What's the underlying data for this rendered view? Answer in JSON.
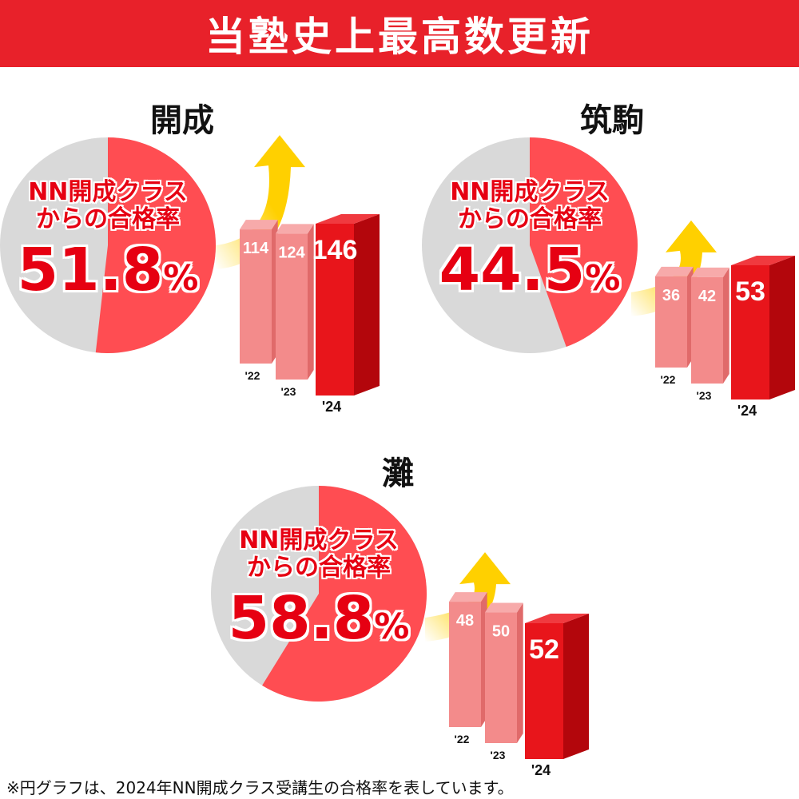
{
  "banner": {
    "title": "当塾史上最高数更新"
  },
  "charts": [
    {
      "school": "開成",
      "pie": {
        "label_line1": "NN開成クラス",
        "label_line2": "からの合格率",
        "value": 51.8,
        "display_value": "51.8",
        "unit": "%"
      },
      "bars": {
        "categories": [
          "'22",
          "'23",
          "'24"
        ],
        "values": [
          114,
          124,
          146
        ]
      }
    },
    {
      "school": "筑駒",
      "pie": {
        "label_line1": "NN開成クラス",
        "label_line2": "からの合格率",
        "value": 44.5,
        "display_value": "44.5",
        "unit": "%"
      },
      "bars": {
        "categories": [
          "'22",
          "'23",
          "'24"
        ],
        "values": [
          36,
          42,
          53
        ]
      }
    },
    {
      "school": "灘",
      "pie": {
        "label_line1": "NN開成クラス",
        "label_line2": "からの合格率",
        "value": 58.8,
        "display_value": "58.8",
        "unit": "%"
      },
      "bars": {
        "categories": [
          "'22",
          "'23",
          "'24"
        ],
        "values": [
          48,
          50,
          52
        ]
      }
    }
  ],
  "chart_data": [
    {
      "type": "pie",
      "title": "開成",
      "labels": [
        "NN開成クラスからの合格率"
      ],
      "values": [
        51.8
      ],
      "unit": "%"
    },
    {
      "type": "bar",
      "title": "開成",
      "categories": [
        "'22",
        "'23",
        "'24"
      ],
      "values": [
        114,
        124,
        146
      ]
    },
    {
      "type": "pie",
      "title": "筑駒",
      "labels": [
        "NN開成クラスからの合格率"
      ],
      "values": [
        44.5
      ],
      "unit": "%"
    },
    {
      "type": "bar",
      "title": "筑駒",
      "categories": [
        "'22",
        "'23",
        "'24"
      ],
      "values": [
        36,
        42,
        53
      ]
    },
    {
      "type": "pie",
      "title": "灘",
      "labels": [
        "NN開成クラスからの合格率"
      ],
      "values": [
        58.8
      ],
      "unit": "%"
    },
    {
      "type": "bar",
      "title": "灘",
      "categories": [
        "'22",
        "'23",
        "'24"
      ],
      "values": [
        48,
        50,
        52
      ]
    }
  ],
  "colors": {
    "banner": "#e8212a",
    "pie_fill": "#ff4d52",
    "pie_rest": "#d9d9d9",
    "bar_light": "#f38b8b",
    "bar_light_side": "#e06a6a",
    "bar_light_top": "#f7aaaa",
    "bar_dark": "#e8151b",
    "bar_dark_side": "#b3060c",
    "bar_dark_top": "#f03a3f",
    "arrow": "#ffd000"
  },
  "footnote": "※円グラフは、2024年NN開成クラス受講生の合格率を表しています。"
}
